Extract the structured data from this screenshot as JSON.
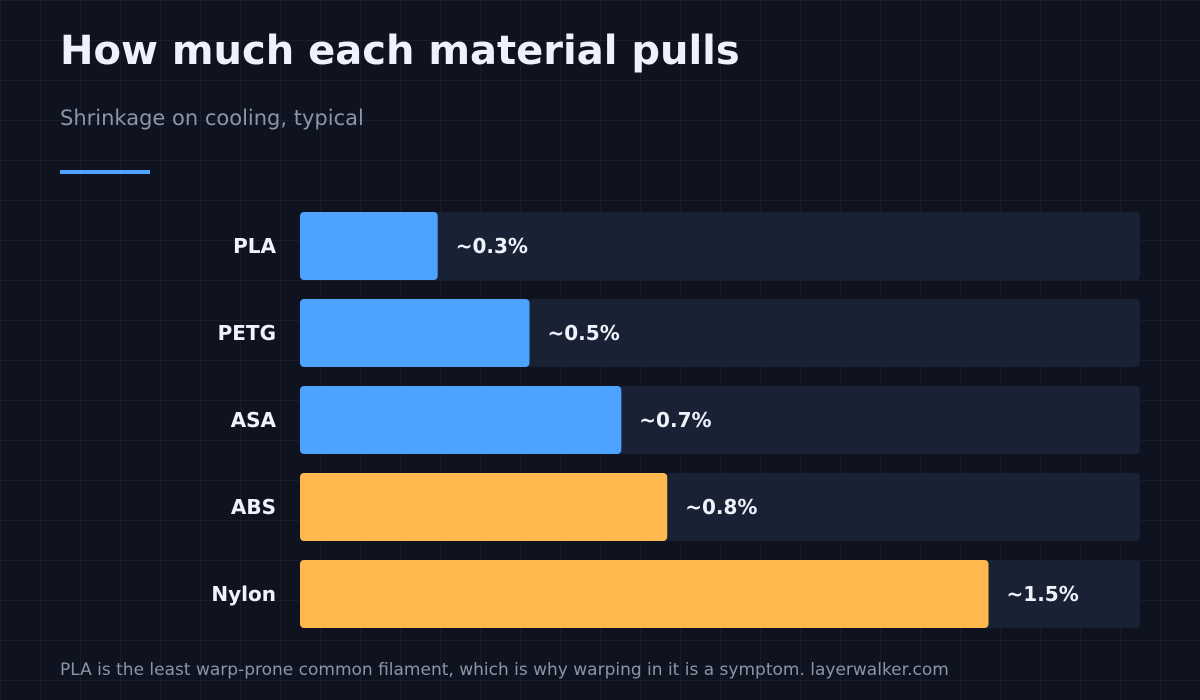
{
  "header": {
    "title": "How much each material pulls",
    "subtitle": "Shrinkage on cooling, typical"
  },
  "colors": {
    "accent": "#4da3ff",
    "blue": "#4da3ff",
    "orange": "#ffb84d",
    "track": "#192134"
  },
  "chart_data": {
    "type": "bar",
    "orientation": "horizontal",
    "title": "How much each material pulls",
    "subtitle": "Shrinkage on cooling, typical",
    "xlabel": "",
    "ylabel": "",
    "unit": "%",
    "xlim": [
      0,
      1.83
    ],
    "grid": false,
    "categories": [
      "PLA",
      "PETG",
      "ASA",
      "ABS",
      "Nylon"
    ],
    "values": [
      0.3,
      0.5,
      0.7,
      0.8,
      1.5
    ],
    "labels": [
      "~0.3%",
      "~0.5%",
      "~0.7%",
      "~0.8%",
      "~1.5%"
    ],
    "bar_colors": [
      "#4da3ff",
      "#4da3ff",
      "#4da3ff",
      "#ffb84d",
      "#ffb84d"
    ]
  },
  "footer": {
    "note": "PLA is the least warp-prone common filament, which is why warping in it is a symptom. layerwalker.com"
  }
}
